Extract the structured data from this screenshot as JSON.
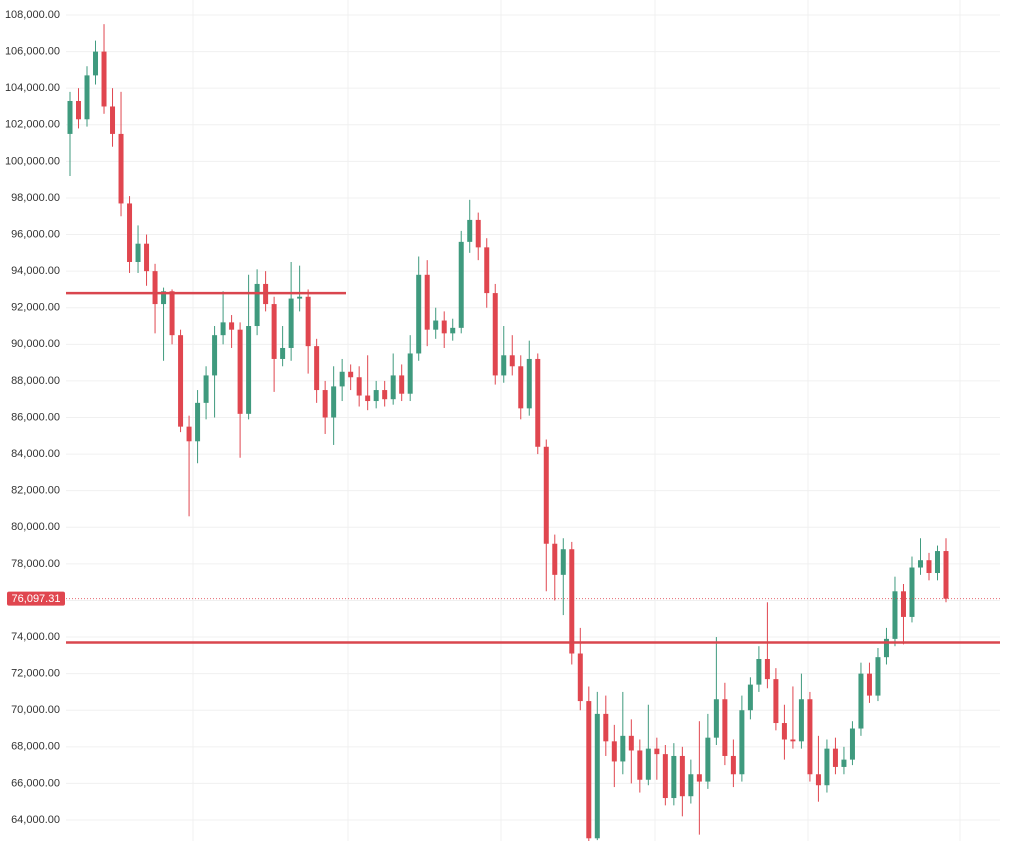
{
  "chart_data": {
    "type": "candlestick",
    "up_color": "#3f9a7e",
    "down_color": "#e0464f",
    "level_color": "#d9464e",
    "ylim": [
      62852,
      108820
    ],
    "yticks": [
      {
        "value": 64000,
        "label": "64,000.00"
      },
      {
        "value": 66000,
        "label": "66,000.00"
      },
      {
        "value": 68000,
        "label": "68,000.00"
      },
      {
        "value": 70000,
        "label": "70,000.00"
      },
      {
        "value": 72000,
        "label": "72,000.00"
      },
      {
        "value": 74000,
        "label": "74,000.00"
      },
      {
        "value": 76000,
        "label": "76,000.00"
      },
      {
        "value": 78000,
        "label": "78,000.00"
      },
      {
        "value": 80000,
        "label": "80,000.00"
      },
      {
        "value": 82000,
        "label": "82,000.00"
      },
      {
        "value": 84000,
        "label": "84,000.00"
      },
      {
        "value": 86000,
        "label": "86,000.00"
      },
      {
        "value": 88000,
        "label": "88,000.00"
      },
      {
        "value": 90000,
        "label": "90,000.00"
      },
      {
        "value": 92000,
        "label": "92,000.00"
      },
      {
        "value": 94000,
        "label": "94,000.00"
      },
      {
        "value": 96000,
        "label": "96,000.00"
      },
      {
        "value": 98000,
        "label": "98,000.00"
      },
      {
        "value": 100000,
        "label": "100,000.00"
      },
      {
        "value": 102000,
        "label": "102,000.00"
      },
      {
        "value": 104000,
        "label": "104,000.00"
      },
      {
        "value": 106000,
        "label": "106,000.00"
      },
      {
        "value": 108000,
        "label": "108,000.00"
      }
    ],
    "grid": true,
    "last_price": {
      "value": 76097.31,
      "label": "76,097.31"
    },
    "levels": [
      92800,
      73700
    ],
    "open": [
      101500,
      103300,
      102300,
      104700,
      106000,
      103000,
      101500,
      97700,
      94500,
      95500,
      94000,
      92200,
      92900,
      90500,
      85500,
      84700,
      86800,
      88300,
      90500,
      91200,
      90800,
      86200,
      91000,
      93300,
      92200,
      89200,
      89800,
      92500,
      92600,
      89900,
      87500,
      86000,
      87700,
      88500,
      88200,
      87200,
      86900,
      87500,
      87000,
      88300,
      87300,
      89500,
      93800,
      90800,
      91300,
      90600,
      90900,
      95600,
      96800,
      95300,
      92800,
      88300,
      89400,
      88800,
      86500,
      89200,
      84400,
      79100,
      77400,
      78800,
      73100,
      70500,
      63000,
      69800,
      68300,
      67200,
      68600,
      67800,
      66200,
      67900,
      67600,
      65200,
      67500,
      65300,
      66500,
      66100,
      68500,
      70600,
      67500,
      66500,
      70000,
      71400,
      72800,
      71700,
      69300,
      68400,
      68300,
      70600,
      66500,
      65900,
      67900,
      66900,
      67300,
      69000,
      72000,
      70800,
      72900,
      73900,
      76500,
      75100,
      77800,
      78200,
      77500,
      78700
    ],
    "high": [
      103800,
      104000,
      105200,
      106600,
      107500,
      104000,
      103800,
      98100,
      96500,
      96000,
      94400,
      93100,
      93000,
      90800,
      86100,
      87500,
      88800,
      91000,
      92900,
      91600,
      91200,
      93800,
      94100,
      94000,
      92600,
      91000,
      94500,
      94300,
      93000,
      90300,
      88000,
      88800,
      89200,
      88900,
      88800,
      89400,
      88000,
      88000,
      89500,
      88900,
      90500,
      94800,
      94600,
      92000,
      91800,
      91400,
      96200,
      97900,
      97200,
      95800,
      93300,
      91000,
      90500,
      89400,
      90200,
      89500,
      84800,
      79600,
      79400,
      79200,
      74500,
      71300,
      71000,
      70800,
      69200,
      71000,
      69500,
      68400,
      70300,
      68500,
      68100,
      68200,
      68000,
      67300,
      69400,
      69800,
      74000,
      71500,
      68400,
      70800,
      71800,
      73500,
      75900,
      72300,
      70300,
      71300,
      72000,
      71000,
      68600,
      68400,
      68500,
      68000,
      69400,
      72600,
      72600,
      73400,
      74500,
      77300,
      76900,
      78400,
      79400,
      78600,
      79000,
      79400
    ],
    "low": [
      99200,
      101800,
      101900,
      104200,
      102600,
      100800,
      97000,
      93900,
      93900,
      93200,
      90600,
      89100,
      90000,
      85200,
      80600,
      83500,
      85900,
      86000,
      90000,
      89800,
      83800,
      85900,
      90500,
      91800,
      87400,
      88800,
      89100,
      91800,
      88400,
      86800,
      85100,
      84500,
      86900,
      87500,
      86600,
      86400,
      86500,
      86600,
      86700,
      86900,
      86900,
      89100,
      89900,
      90300,
      89800,
      90200,
      90600,
      95000,
      94600,
      92000,
      87800,
      87900,
      88300,
      85900,
      86100,
      84000,
      76500,
      76000,
      75200,
      72500,
      70000,
      62800,
      62900,
      67500,
      65800,
      66500,
      66000,
      65500,
      65900,
      66200,
      64800,
      64800,
      64200,
      64900,
      63200,
      65700,
      68100,
      67000,
      65800,
      66100,
      69500,
      71000,
      71200,
      68900,
      67300,
      67900,
      67900,
      66100,
      65000,
      65500,
      66500,
      66500,
      67000,
      68600,
      70400,
      70500,
      72500,
      73500,
      73600,
      74800,
      77400,
      77100,
      77100,
      75900
    ],
    "close": [
      103300,
      102300,
      104700,
      106000,
      103000,
      101500,
      97700,
      94500,
      95500,
      94000,
      92200,
      92900,
      90500,
      85500,
      84700,
      86800,
      88300,
      90500,
      91200,
      90800,
      86200,
      91000,
      93300,
      92200,
      89200,
      89800,
      92500,
      92600,
      89900,
      87500,
      86000,
      87700,
      88500,
      88200,
      87200,
      86900,
      87500,
      87000,
      88300,
      87300,
      89500,
      93800,
      90800,
      91300,
      90600,
      90900,
      95600,
      96800,
      95300,
      92800,
      88300,
      89400,
      88800,
      86500,
      89200,
      84400,
      79100,
      77400,
      78800,
      73100,
      70500,
      63000,
      69800,
      68300,
      67200,
      68600,
      67800,
      66200,
      67900,
      67600,
      65200,
      67500,
      65300,
      66500,
      66100,
      68500,
      70600,
      67500,
      66500,
      70000,
      71400,
      72800,
      71700,
      69300,
      68400,
      68300,
      70600,
      66500,
      65900,
      67900,
      66900,
      67300,
      69000,
      72000,
      70800,
      72900,
      73900,
      76500,
      75100,
      77800,
      78200,
      77500,
      78700,
      76097.31
    ]
  }
}
